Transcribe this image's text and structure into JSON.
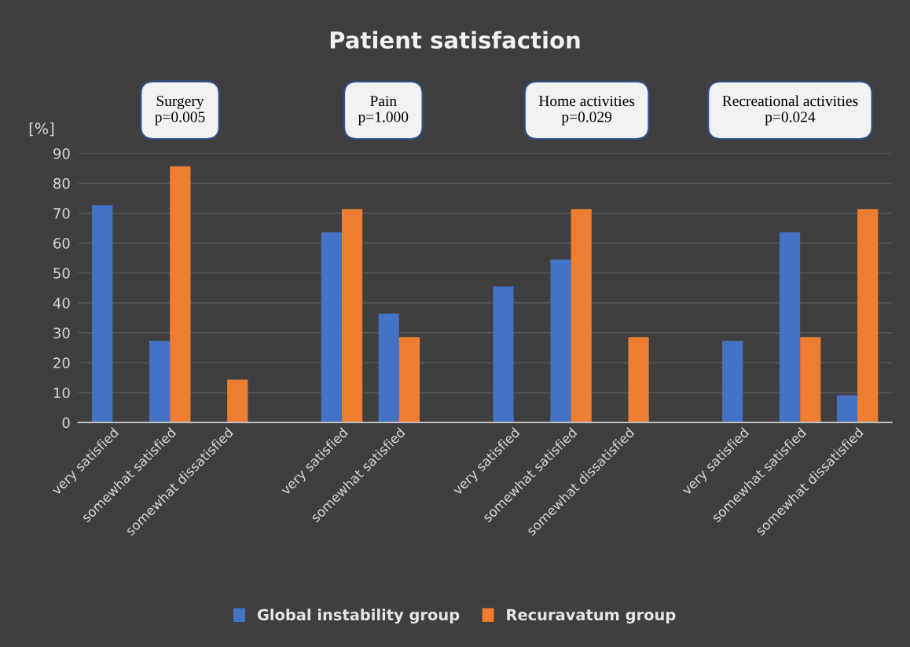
{
  "chart_data": {
    "type": "bar",
    "title": "Patient satisfaction",
    "ylabel": "[%]",
    "categories": [
      "very satisfied",
      "somewhat satisfied",
      "somewhat dissatisfied",
      null,
      "very satisfied",
      "somewhat satisfied",
      null,
      "very satisfied",
      "somewhat satisfied",
      "somewhat dissatisfied",
      null,
      "very satisfied",
      "somewhat satisfied",
      "somewhat dissatisfied"
    ],
    "series": [
      {
        "name": "Global instability group",
        "color": "#4472c4",
        "values": [
          72.7,
          27.3,
          0,
          null,
          63.6,
          36.4,
          null,
          45.5,
          54.5,
          0,
          null,
          27.3,
          63.6,
          9.1
        ]
      },
      {
        "name": "Recuravatum group",
        "color": "#ed7d31",
        "values": [
          0,
          85.7,
          14.3,
          null,
          71.4,
          28.6,
          null,
          0,
          71.4,
          28.6,
          null,
          0,
          28.6,
          71.4
        ]
      }
    ],
    "annotations": [
      "Surgery\np=0.005",
      "Pain\np=1.000",
      "Home activities\np=0.029",
      "Recreational activities\np=0.024"
    ],
    "ylim": [
      0,
      90
    ],
    "yticks": [
      0,
      10,
      20,
      30,
      40,
      50,
      60,
      70,
      80,
      90
    ],
    "grid": "y",
    "legend": "bottom"
  }
}
